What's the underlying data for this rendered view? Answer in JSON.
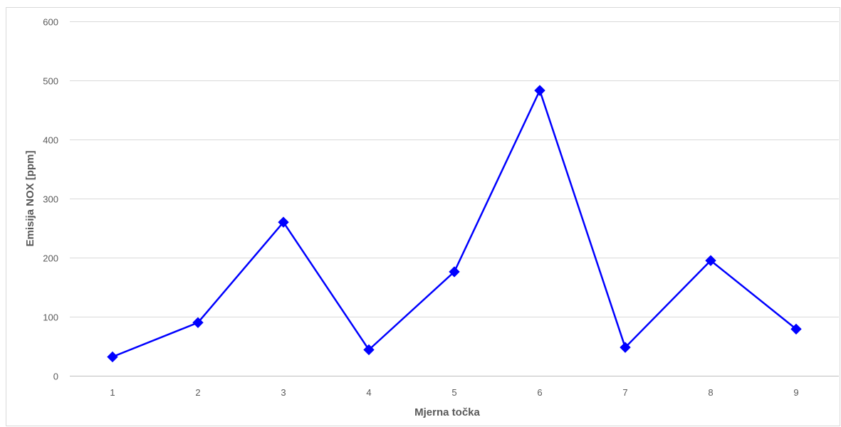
{
  "chart_data": {
    "type": "line",
    "title": "",
    "xlabel": "Mjerna točka",
    "ylabel": "Emisija NOX [ppm]",
    "categories": [
      "1",
      "2",
      "3",
      "4",
      "5",
      "6",
      "7",
      "8",
      "9"
    ],
    "series": [
      {
        "values": [
          32,
          90,
          260,
          44,
          176,
          483,
          48,
          195,
          79
        ],
        "color": "#0000ff",
        "marker": "diamond"
      }
    ],
    "ylim": [
      0,
      600
    ],
    "yticks": [
      0,
      100,
      200,
      300,
      400,
      500,
      600
    ],
    "grid": true,
    "legend": "none"
  }
}
